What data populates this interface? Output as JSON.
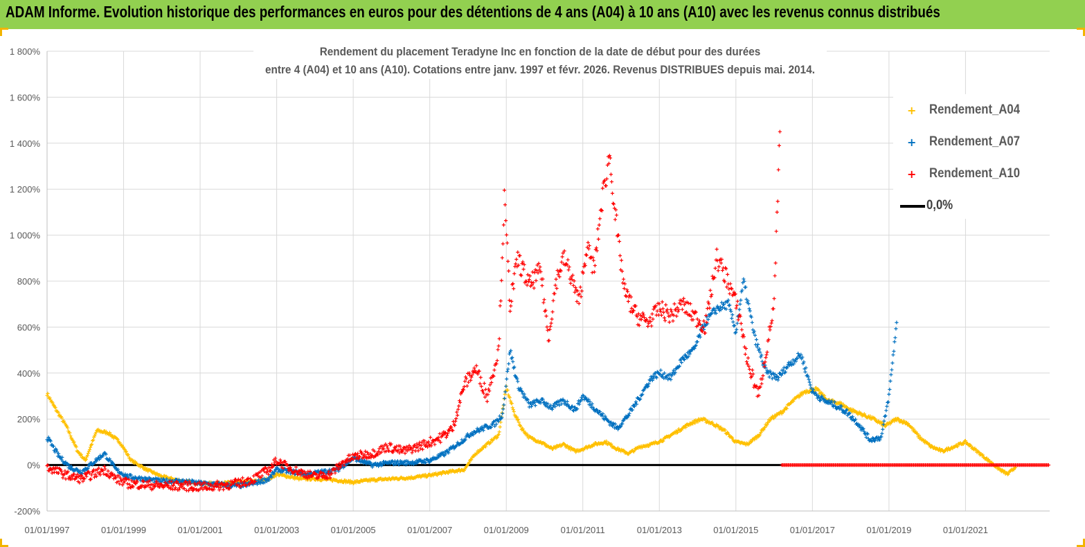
{
  "header": {
    "banner_title": "ADAM Informe. Evolution historique des performances en euros pour des détentions de 4 ans (A04) à 10 ans (A10) avec les revenus connus distribués"
  },
  "colors": {
    "banner": "#92d050",
    "A04": "#ffc000",
    "A07": "#0070c0",
    "A10": "#ff0000",
    "zero_line": "#000000",
    "grid": "#d9d9d9"
  },
  "chart_data": {
    "type": "scatter",
    "title_line1": "Rendement du placement Teradyne Inc en fonction de la date de début pour des durées",
    "title_line2": "entre 4 (A04) et 10 ans (A10). Cotations entre janv. 1997 et févr. 2026. Revenus DISTRIBUES depuis mai. 2014.",
    "y_ticks": [
      -200,
      0,
      200,
      400,
      600,
      800,
      1000,
      1200,
      1400,
      1600,
      1800
    ],
    "y_tick_labels": [
      "-200%",
      "0%",
      "200%",
      "400%",
      "600%",
      "800%",
      "1 000%",
      "1 200%",
      "1 400%",
      "1 600%",
      "1 800%"
    ],
    "ylim": [
      -200,
      1800
    ],
    "xlim": [
      1997.0,
      2023.2
    ],
    "x_ticks": [
      1997,
      1999,
      2001,
      2003,
      2005,
      2007,
      2009,
      2011,
      2013,
      2015,
      2017,
      2019,
      2021
    ],
    "x_tick_labels": [
      "01/01/1997",
      "01/01/1999",
      "01/01/2001",
      "01/01/2003",
      "01/01/2005",
      "01/01/2007",
      "01/01/2009",
      "01/01/2011",
      "01/01/2013",
      "01/01/2015",
      "01/01/2017",
      "01/01/2019",
      "01/01/2021"
    ],
    "grid": true,
    "legend_position": "top-right",
    "series": [
      {
        "name": "Rendement_A04",
        "marker": "+",
        "x": [
          1997.0,
          1997.2,
          1997.5,
          1997.8,
          1998.0,
          1998.3,
          1998.6,
          1998.9,
          1999.2,
          1999.6,
          2000.0,
          2000.5,
          2001.0,
          2001.5,
          2002.0,
          2002.5,
          2002.8,
          2003.0,
          2003.3,
          2003.6,
          2004.0,
          2004.5,
          2005.0,
          2005.5,
          2006.0,
          2006.5,
          2007.0,
          2007.5,
          2007.9,
          2008.2,
          2008.5,
          2008.8,
          2009.0,
          2009.2,
          2009.4,
          2009.6,
          2009.9,
          2010.2,
          2010.5,
          2010.8,
          2011.0,
          2011.3,
          2011.6,
          2011.9,
          2012.2,
          2012.5,
          2012.8,
          2013.1,
          2013.4,
          2013.8,
          2014.1,
          2014.4,
          2014.7,
          2015.0,
          2015.3,
          2015.6,
          2015.9,
          2016.2,
          2016.5,
          2016.8,
          2017.1,
          2017.4,
          2017.7,
          2018.0,
          2018.3,
          2018.6,
          2018.9,
          2019.2,
          2019.5,
          2019.8,
          2020.1,
          2020.4,
          2020.7,
          2021.0,
          2021.3,
          2021.6,
          2021.9,
          2022.1,
          2022.3
        ],
        "y": [
          310,
          250,
          170,
          60,
          20,
          150,
          140,
          100,
          20,
          -20,
          -50,
          -70,
          -80,
          -80,
          -75,
          -70,
          -60,
          -40,
          -50,
          -60,
          -60,
          -65,
          -75,
          -65,
          -60,
          -55,
          -45,
          -30,
          -20,
          50,
          90,
          130,
          340,
          230,
          160,
          120,
          100,
          70,
          90,
          60,
          70,
          90,
          100,
          70,
          50,
          80,
          90,
          110,
          140,
          180,
          200,
          180,
          150,
          100,
          90,
          130,
          200,
          230,
          280,
          320,
          330,
          280,
          270,
          240,
          220,
          200,
          170,
          200,
          180,
          120,
          80,
          60,
          80,
          100,
          60,
          20,
          -20,
          -40,
          -10
        ]
      },
      {
        "name": "Rendement_A07",
        "marker": "+",
        "x": [
          1997.0,
          1997.3,
          1997.6,
          1997.9,
          1998.2,
          1998.5,
          1998.8,
          1999.1,
          1999.5,
          2000.0,
          2000.5,
          2001.0,
          2001.5,
          2002.0,
          2002.4,
          2002.8,
          2003.0,
          2003.4,
          2003.8,
          2004.2,
          2004.6,
          2005.0,
          2005.5,
          2006.0,
          2006.5,
          2007.0,
          2007.4,
          2007.8,
          2008.1,
          2008.4,
          2008.7,
          2008.9,
          2009.1,
          2009.3,
          2009.6,
          2009.9,
          2010.2,
          2010.5,
          2010.8,
          2011.0,
          2011.3,
          2011.6,
          2011.9,
          2012.2,
          2012.5,
          2012.8,
          2013.0,
          2013.3,
          2013.6,
          2013.9,
          2014.2,
          2014.5,
          2014.8,
          2015.0,
          2015.2,
          2015.5,
          2015.8,
          2016.1,
          2016.4,
          2016.7,
          2017.0,
          2017.3,
          2017.6,
          2017.9,
          2018.2,
          2018.5,
          2018.8,
          2019.0,
          2019.2
        ],
        "y": [
          120,
          40,
          -10,
          -30,
          10,
          50,
          -20,
          -50,
          -60,
          -70,
          -70,
          -80,
          -85,
          -90,
          -80,
          -60,
          -20,
          -30,
          -40,
          -30,
          -20,
          30,
          0,
          10,
          10,
          20,
          50,
          100,
          140,
          160,
          180,
          220,
          500,
          350,
          260,
          280,
          250,
          280,
          240,
          300,
          250,
          200,
          160,
          220,
          300,
          380,
          400,
          380,
          460,
          500,
          620,
          680,
          700,
          580,
          800,
          550,
          400,
          380,
          440,
          480,
          320,
          280,
          260,
          230,
          180,
          110,
          120,
          300,
          620
        ]
      },
      {
        "name": "Rendement_A10",
        "marker": "+",
        "x": [
          1997.0,
          1997.3,
          1997.6,
          1997.9,
          1998.2,
          1998.5,
          1998.8,
          1999.1,
          1999.5,
          2000.0,
          2000.5,
          2001.0,
          2001.5,
          2002.0,
          2002.4,
          2002.8,
          2003.0,
          2003.3,
          2003.6,
          2004.0,
          2004.4,
          2004.8,
          2005.1,
          2005.5,
          2005.9,
          2006.3,
          2006.7,
          2007.0,
          2007.3,
          2007.6,
          2007.9,
          2008.2,
          2008.5,
          2008.8,
          2008.95,
          2009.1,
          2009.3,
          2009.6,
          2009.9,
          2010.1,
          2010.3,
          2010.5,
          2010.7,
          2010.9,
          2011.1,
          2011.3,
          2011.5,
          2011.7,
          2011.9,
          2012.1,
          2012.4,
          2012.7,
          2013.0,
          2013.3,
          2013.6,
          2013.9,
          2014.2,
          2014.5,
          2014.8,
          2015.1,
          2015.3,
          2015.6,
          2015.8,
          2016.0,
          2016.15
        ],
        "y": [
          -10,
          -30,
          -50,
          -60,
          -40,
          -20,
          -60,
          -80,
          -85,
          -90,
          -90,
          -95,
          -90,
          -80,
          -60,
          -20,
          20,
          -10,
          -30,
          -50,
          -40,
          20,
          40,
          50,
          80,
          60,
          80,
          100,
          120,
          160,
          350,
          420,
          300,
          500,
          1150,
          700,
          900,
          780,
          850,
          550,
          800,
          900,
          820,
          700,
          950,
          850,
          1150,
          1350,
          1000,
          750,
          650,
          620,
          680,
          650,
          700,
          650,
          600,
          900,
          800,
          650,
          450,
          300,
          500,
          700,
          1450
        ]
      }
    ],
    "zero_line": {
      "name": "0,0%",
      "y": 0
    },
    "flat_zero_from": 2016.2
  }
}
